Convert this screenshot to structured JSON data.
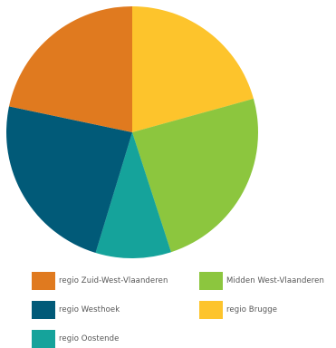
{
  "chart_data": {
    "type": "pie",
    "start_angle_deg": 0,
    "direction": "clockwise",
    "slices": [
      {
        "label": "regio Brugge",
        "value": 20.7,
        "color": "#FDC42C"
      },
      {
        "label": "Midden West-Vlaanderen",
        "value": 24.3,
        "color": "#8CC63E"
      },
      {
        "label": "regio Oostende",
        "value": 9.7,
        "color": "#15A39B"
      },
      {
        "label": "regio Westhoek",
        "value": 23.6,
        "color": "#015A78"
      },
      {
        "label": "regio Zuid-West-Vlaanderen",
        "value": 21.7,
        "color": "#E07A1F"
      }
    ],
    "legend": {
      "placement": "bottom",
      "entries": [
        {
          "label": "regio Zuid-West-Vlaanderen",
          "color": "#E07A1F"
        },
        {
          "label": "Midden West-Vlaanderen",
          "color": "#8CC63E"
        },
        {
          "label": "regio Westhoek",
          "color": "#015A78"
        },
        {
          "label": "regio Brugge",
          "color": "#FDC42C"
        },
        {
          "label": "regio Oostende",
          "color": "#15A39B"
        }
      ]
    }
  }
}
